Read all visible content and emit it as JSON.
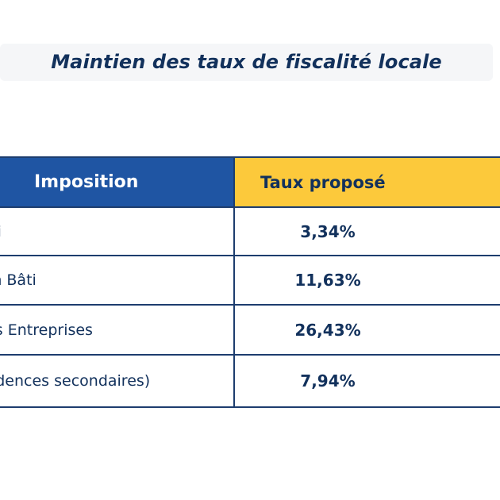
{
  "title": "Maintien des taux de fiscalité locale",
  "table": {
    "headers": {
      "imposition": "Imposition",
      "taux": "Taux proposé"
    },
    "rows": [
      {
        "imposition": "Taxe sur le Foncier Bâti",
        "taux": "3,34%"
      },
      {
        "imposition": "Taxe sur le Foncier Non Bâti",
        "taux": "11,63%"
      },
      {
        "imposition": "Cotisation Foncière des Entreprises",
        "taux": "26,43%"
      },
      {
        "imposition": "Taxe d'Habitation (résidences secondaires)",
        "taux": "7,94%"
      }
    ]
  },
  "colors": {
    "header_blue": "#1f55a3",
    "header_yellow": "#fcc93b",
    "text_navy": "#12315c",
    "border": "#1d3d6e"
  }
}
